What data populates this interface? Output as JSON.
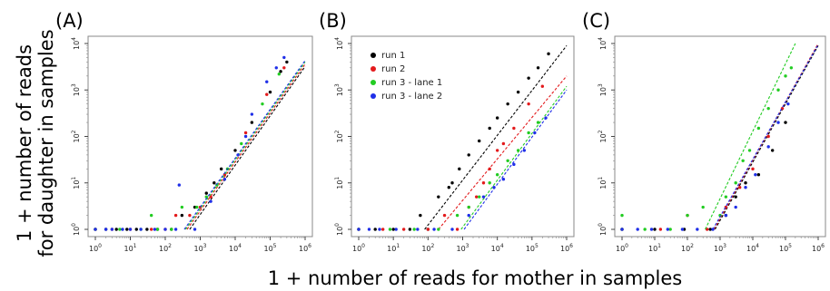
{
  "figure": {
    "ylabel_line1": "1 + number of reads",
    "ylabel_line2": "for daughter in samples",
    "xlabel": "1 + number of reads for mother in samples"
  },
  "colors": {
    "run1": "#000000",
    "run2": "#e31a1c",
    "run3_lane1": "#22cc22",
    "run3_lane2": "#1f2fe8"
  },
  "chart_data": [
    {
      "type": "scatter",
      "panel_label": "(A)",
      "x_scale": "log10",
      "y_scale": "log10",
      "xlim": [
        1,
        1000000
      ],
      "ylim": [
        1,
        10000
      ],
      "x_ticks": [
        "10^0",
        "10^1",
        "10^2",
        "10^3",
        "10^4",
        "10^5",
        "10^6"
      ],
      "y_ticks": [
        "10^0",
        "10^1",
        "10^2",
        "10^3",
        "10^4"
      ],
      "legend": null,
      "series": [
        {
          "color_key": "run1",
          "points": [
            [
              1,
              1
            ],
            [
              2,
              1
            ],
            [
              4,
              1
            ],
            [
              8,
              1
            ],
            [
              15,
              1
            ],
            [
              30,
              1
            ],
            [
              60,
              1
            ],
            [
              150,
              1
            ],
            [
              300,
              2
            ],
            [
              700,
              3
            ],
            [
              1500,
              6
            ],
            [
              2500,
              10
            ],
            [
              4000,
              20
            ],
            [
              10000,
              50
            ],
            [
              30000,
              200
            ],
            [
              100000,
              900
            ],
            [
              200000,
              2500
            ],
            [
              300000,
              4000
            ]
          ],
          "fit": [
            [
              500,
              1
            ],
            [
              1000000,
              3200
            ]
          ]
        },
        {
          "color_key": "run2",
          "points": [
            [
              1,
              1
            ],
            [
              3,
              1
            ],
            [
              10,
              1
            ],
            [
              40,
              1
            ],
            [
              100,
              1
            ],
            [
              200,
              2
            ],
            [
              500,
              2
            ],
            [
              1000,
              3
            ],
            [
              2000,
              5
            ],
            [
              5000,
              15
            ],
            [
              20000,
              120
            ],
            [
              80000,
              800
            ],
            [
              250000,
              3000
            ]
          ],
          "fit": [
            [
              420,
              1
            ],
            [
              1000000,
              3600
            ]
          ]
        },
        {
          "color_key": "run3_lane1",
          "points": [
            [
              1,
              1
            ],
            [
              5,
              1
            ],
            [
              20,
              1
            ],
            [
              60,
              1
            ],
            [
              150,
              1
            ],
            [
              40,
              2
            ],
            [
              300,
              3
            ],
            [
              800,
              3
            ],
            [
              1500,
              5
            ],
            [
              3000,
              9
            ],
            [
              6000,
              20
            ],
            [
              15000,
              70
            ],
            [
              60000,
              500
            ],
            [
              180000,
              2200
            ]
          ],
          "fit": [
            [
              380,
              1
            ],
            [
              1000000,
              4000
            ]
          ]
        },
        {
          "color_key": "run3_lane2",
          "points": [
            [
              1,
              1
            ],
            [
              2,
              1
            ],
            [
              3,
              1
            ],
            [
              6,
              1
            ],
            [
              10,
              1
            ],
            [
              20,
              1
            ],
            [
              50,
              1
            ],
            [
              100,
              1
            ],
            [
              200,
              1
            ],
            [
              250,
              9
            ],
            [
              700,
              1
            ],
            [
              2000,
              4
            ],
            [
              5000,
              12
            ],
            [
              12000,
              40
            ],
            [
              20000,
              100
            ],
            [
              30000,
              300
            ],
            [
              80000,
              1500
            ],
            [
              150000,
              3000
            ],
            [
              250000,
              5000
            ]
          ],
          "fit": [
            [
              350,
              1
            ],
            [
              1000000,
              4300
            ]
          ]
        }
      ]
    },
    {
      "type": "scatter",
      "panel_label": "(B)",
      "x_scale": "log10",
      "y_scale": "log10",
      "xlim": [
        1,
        1000000
      ],
      "ylim": [
        1,
        10000
      ],
      "x_ticks": [
        "10^0",
        "10^1",
        "10^2",
        "10^3",
        "10^4",
        "10^5",
        "10^6"
      ],
      "y_ticks": [
        "10^0",
        "10^1",
        "10^2",
        "10^3",
        "10^4"
      ],
      "legend": {
        "position": "top-left",
        "entries": [
          {
            "label": "run 1",
            "color_key": "run1"
          },
          {
            "label": "run 2",
            "color_key": "run2"
          },
          {
            "label": "run 3 - lane 1",
            "color_key": "run3_lane1"
          },
          {
            "label": "run 3 - lane 2",
            "color_key": "run3_lane2"
          }
        ]
      },
      "series": [
        {
          "color_key": "run1",
          "points": [
            [
              1,
              1
            ],
            [
              3,
              1
            ],
            [
              10,
              1
            ],
            [
              30,
              1
            ],
            [
              60,
              2
            ],
            [
              100,
              1
            ],
            [
              200,
              5
            ],
            [
              400,
              8
            ],
            [
              500,
              10
            ],
            [
              800,
              20
            ],
            [
              1500,
              40
            ],
            [
              3000,
              80
            ],
            [
              6000,
              150
            ],
            [
              10000,
              250
            ],
            [
              20000,
              500
            ],
            [
              40000,
              900
            ],
            [
              80000,
              1800
            ],
            [
              150000,
              3000
            ],
            [
              300000,
              6000
            ]
          ],
          "fit": [
            [
              80,
              1
            ],
            [
              1000000,
              9000
            ]
          ]
        },
        {
          "color_key": "run2",
          "points": [
            [
              1,
              1
            ],
            [
              5,
              1
            ],
            [
              20,
              1
            ],
            [
              100,
              1
            ],
            [
              300,
              2
            ],
            [
              700,
              1
            ],
            [
              1500,
              3
            ],
            [
              2500,
              5
            ],
            [
              4000,
              10
            ],
            [
              6000,
              20
            ],
            [
              10000,
              50
            ],
            [
              15000,
              70
            ],
            [
              30000,
              150
            ],
            [
              80000,
              500
            ],
            [
              200000,
              1200
            ]
          ],
          "fit": [
            [
              200,
              1
            ],
            [
              1000000,
              2000
            ]
          ]
        },
        {
          "color_key": "run3_lane1",
          "points": [
            [
              1,
              1
            ],
            [
              8,
              1
            ],
            [
              40,
              1
            ],
            [
              200,
              1
            ],
            [
              700,
              2
            ],
            [
              1500,
              3
            ],
            [
              3000,
              5
            ],
            [
              6000,
              10
            ],
            [
              10000,
              15
            ],
            [
              20000,
              30
            ],
            [
              40000,
              50
            ],
            [
              80000,
              120
            ],
            [
              150000,
              200
            ]
          ],
          "fit": [
            [
              900,
              1
            ],
            [
              1000000,
              1200
            ]
          ]
        },
        {
          "color_key": "run3_lane2",
          "points": [
            [
              1,
              1
            ],
            [
              2,
              1
            ],
            [
              4,
              1
            ],
            [
              12,
              1
            ],
            [
              50,
              1
            ],
            [
              150,
              1
            ],
            [
              500,
              1
            ],
            [
              1500,
              2
            ],
            [
              4000,
              5
            ],
            [
              8000,
              8
            ],
            [
              15000,
              12
            ],
            [
              30000,
              25
            ],
            [
              60000,
              50
            ],
            [
              120000,
              120
            ],
            [
              250000,
              250
            ]
          ],
          "fit": [
            [
              1100,
              1
            ],
            [
              1000000,
              1000
            ]
          ]
        }
      ]
    },
    {
      "type": "scatter",
      "panel_label": "(C)",
      "x_scale": "log10",
      "y_scale": "log10",
      "xlim": [
        1,
        1000000
      ],
      "ylim": [
        1,
        10000
      ],
      "x_ticks": [
        "10^0",
        "10^1",
        "10^2",
        "10^3",
        "10^4",
        "10^5",
        "10^6"
      ],
      "y_ticks": [
        "10^0",
        "10^1",
        "10^2",
        "10^3",
        "10^4"
      ],
      "legend": null,
      "series": [
        {
          "color_key": "run1",
          "points": [
            [
              1,
              1
            ],
            [
              10,
              1
            ],
            [
              80,
              1
            ],
            [
              500,
              1
            ],
            [
              1500,
              2
            ],
            [
              3000,
              5
            ],
            [
              6000,
              10
            ],
            [
              15000,
              15
            ],
            [
              40000,
              50
            ],
            [
              100000,
              200
            ]
          ],
          "fit": [
            [
              700,
              1
            ],
            [
              1000000,
              9000
            ]
          ]
        },
        {
          "color_key": "run2",
          "points": [
            [
              1,
              1
            ],
            [
              15,
              1
            ],
            [
              100,
              2
            ],
            [
              400,
              1
            ],
            [
              1500,
              3
            ],
            [
              4000,
              8
            ],
            [
              10000,
              20
            ],
            [
              30000,
              100
            ],
            [
              80000,
              400
            ]
          ],
          "fit": [
            [
              650,
              1
            ],
            [
              1000000,
              10000
            ]
          ]
        },
        {
          "color_key": "run3_lane1",
          "points": [
            [
              1,
              1
            ],
            [
              1,
              2
            ],
            [
              5,
              1
            ],
            [
              30,
              1
            ],
            [
              100,
              2
            ],
            [
              300,
              3
            ],
            [
              1000,
              2
            ],
            [
              1500,
              5
            ],
            [
              3000,
              10
            ],
            [
              5000,
              30
            ],
            [
              8000,
              50
            ],
            [
              15000,
              150
            ],
            [
              30000,
              400
            ],
            [
              60000,
              1000
            ],
            [
              100000,
              2000
            ],
            [
              150000,
              3000
            ]
          ],
          "fit": [
            [
              350,
              1
            ],
            [
              200000,
              10000
            ]
          ]
        },
        {
          "color_key": "run3_lane2",
          "points": [
            [
              1,
              1
            ],
            [
              3,
              1
            ],
            [
              8,
              1
            ],
            [
              25,
              1
            ],
            [
              70,
              1
            ],
            [
              200,
              1
            ],
            [
              600,
              1
            ],
            [
              1500,
              2
            ],
            [
              3000,
              3
            ],
            [
              6000,
              8
            ],
            [
              12000,
              15
            ],
            [
              30000,
              60
            ],
            [
              60000,
              200
            ],
            [
              120000,
              500
            ]
          ],
          "fit": [
            [
              600,
              1
            ],
            [
              1000000,
              9500
            ]
          ]
        }
      ]
    }
  ]
}
